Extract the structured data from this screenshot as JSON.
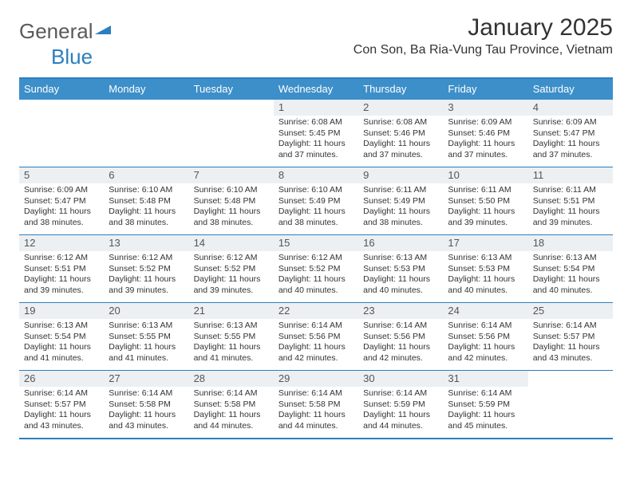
{
  "brand": {
    "part1": "General",
    "part2": "Blue"
  },
  "title": "January 2025",
  "location": "Con Son, Ba Ria-Vung Tau Province, Vietnam",
  "colors": {
    "header_bg": "#3d8fc9",
    "rule": "#2b7fbf",
    "daynum_bg": "#ecf0f3",
    "text": "#333333",
    "white": "#ffffff"
  },
  "typography": {
    "month_title_fontsize": 30,
    "location_fontsize": 16,
    "dow_fontsize": 13,
    "daynum_fontsize": 13,
    "body_fontsize": 10.5
  },
  "days_of_week": [
    "Sunday",
    "Monday",
    "Tuesday",
    "Wednesday",
    "Thursday",
    "Friday",
    "Saturday"
  ],
  "calendar": {
    "month": 1,
    "year": 2025,
    "first_weekday_index": 3,
    "num_days": 31,
    "weeks": [
      [
        null,
        null,
        null,
        {
          "n": "1",
          "sunrise": "6:08 AM",
          "sunset": "5:45 PM",
          "daylight": "11 hours and 37 minutes."
        },
        {
          "n": "2",
          "sunrise": "6:08 AM",
          "sunset": "5:46 PM",
          "daylight": "11 hours and 37 minutes."
        },
        {
          "n": "3",
          "sunrise": "6:09 AM",
          "sunset": "5:46 PM",
          "daylight": "11 hours and 37 minutes."
        },
        {
          "n": "4",
          "sunrise": "6:09 AM",
          "sunset": "5:47 PM",
          "daylight": "11 hours and 37 minutes."
        }
      ],
      [
        {
          "n": "5",
          "sunrise": "6:09 AM",
          "sunset": "5:47 PM",
          "daylight": "11 hours and 38 minutes."
        },
        {
          "n": "6",
          "sunrise": "6:10 AM",
          "sunset": "5:48 PM",
          "daylight": "11 hours and 38 minutes."
        },
        {
          "n": "7",
          "sunrise": "6:10 AM",
          "sunset": "5:48 PM",
          "daylight": "11 hours and 38 minutes."
        },
        {
          "n": "8",
          "sunrise": "6:10 AM",
          "sunset": "5:49 PM",
          "daylight": "11 hours and 38 minutes."
        },
        {
          "n": "9",
          "sunrise": "6:11 AM",
          "sunset": "5:49 PM",
          "daylight": "11 hours and 38 minutes."
        },
        {
          "n": "10",
          "sunrise": "6:11 AM",
          "sunset": "5:50 PM",
          "daylight": "11 hours and 39 minutes."
        },
        {
          "n": "11",
          "sunrise": "6:11 AM",
          "sunset": "5:51 PM",
          "daylight": "11 hours and 39 minutes."
        }
      ],
      [
        {
          "n": "12",
          "sunrise": "6:12 AM",
          "sunset": "5:51 PM",
          "daylight": "11 hours and 39 minutes."
        },
        {
          "n": "13",
          "sunrise": "6:12 AM",
          "sunset": "5:52 PM",
          "daylight": "11 hours and 39 minutes."
        },
        {
          "n": "14",
          "sunrise": "6:12 AM",
          "sunset": "5:52 PM",
          "daylight": "11 hours and 39 minutes."
        },
        {
          "n": "15",
          "sunrise": "6:12 AM",
          "sunset": "5:52 PM",
          "daylight": "11 hours and 40 minutes."
        },
        {
          "n": "16",
          "sunrise": "6:13 AM",
          "sunset": "5:53 PM",
          "daylight": "11 hours and 40 minutes."
        },
        {
          "n": "17",
          "sunrise": "6:13 AM",
          "sunset": "5:53 PM",
          "daylight": "11 hours and 40 minutes."
        },
        {
          "n": "18",
          "sunrise": "6:13 AM",
          "sunset": "5:54 PM",
          "daylight": "11 hours and 40 minutes."
        }
      ],
      [
        {
          "n": "19",
          "sunrise": "6:13 AM",
          "sunset": "5:54 PM",
          "daylight": "11 hours and 41 minutes."
        },
        {
          "n": "20",
          "sunrise": "6:13 AM",
          "sunset": "5:55 PM",
          "daylight": "11 hours and 41 minutes."
        },
        {
          "n": "21",
          "sunrise": "6:13 AM",
          "sunset": "5:55 PM",
          "daylight": "11 hours and 41 minutes."
        },
        {
          "n": "22",
          "sunrise": "6:14 AM",
          "sunset": "5:56 PM",
          "daylight": "11 hours and 42 minutes."
        },
        {
          "n": "23",
          "sunrise": "6:14 AM",
          "sunset": "5:56 PM",
          "daylight": "11 hours and 42 minutes."
        },
        {
          "n": "24",
          "sunrise": "6:14 AM",
          "sunset": "5:56 PM",
          "daylight": "11 hours and 42 minutes."
        },
        {
          "n": "25",
          "sunrise": "6:14 AM",
          "sunset": "5:57 PM",
          "daylight": "11 hours and 43 minutes."
        }
      ],
      [
        {
          "n": "26",
          "sunrise": "6:14 AM",
          "sunset": "5:57 PM",
          "daylight": "11 hours and 43 minutes."
        },
        {
          "n": "27",
          "sunrise": "6:14 AM",
          "sunset": "5:58 PM",
          "daylight": "11 hours and 43 minutes."
        },
        {
          "n": "28",
          "sunrise": "6:14 AM",
          "sunset": "5:58 PM",
          "daylight": "11 hours and 44 minutes."
        },
        {
          "n": "29",
          "sunrise": "6:14 AM",
          "sunset": "5:58 PM",
          "daylight": "11 hours and 44 minutes."
        },
        {
          "n": "30",
          "sunrise": "6:14 AM",
          "sunset": "5:59 PM",
          "daylight": "11 hours and 44 minutes."
        },
        {
          "n": "31",
          "sunrise": "6:14 AM",
          "sunset": "5:59 PM",
          "daylight": "11 hours and 45 minutes."
        },
        null
      ]
    ]
  },
  "labels": {
    "sunrise": "Sunrise:",
    "sunset": "Sunset:",
    "daylight": "Daylight:"
  }
}
